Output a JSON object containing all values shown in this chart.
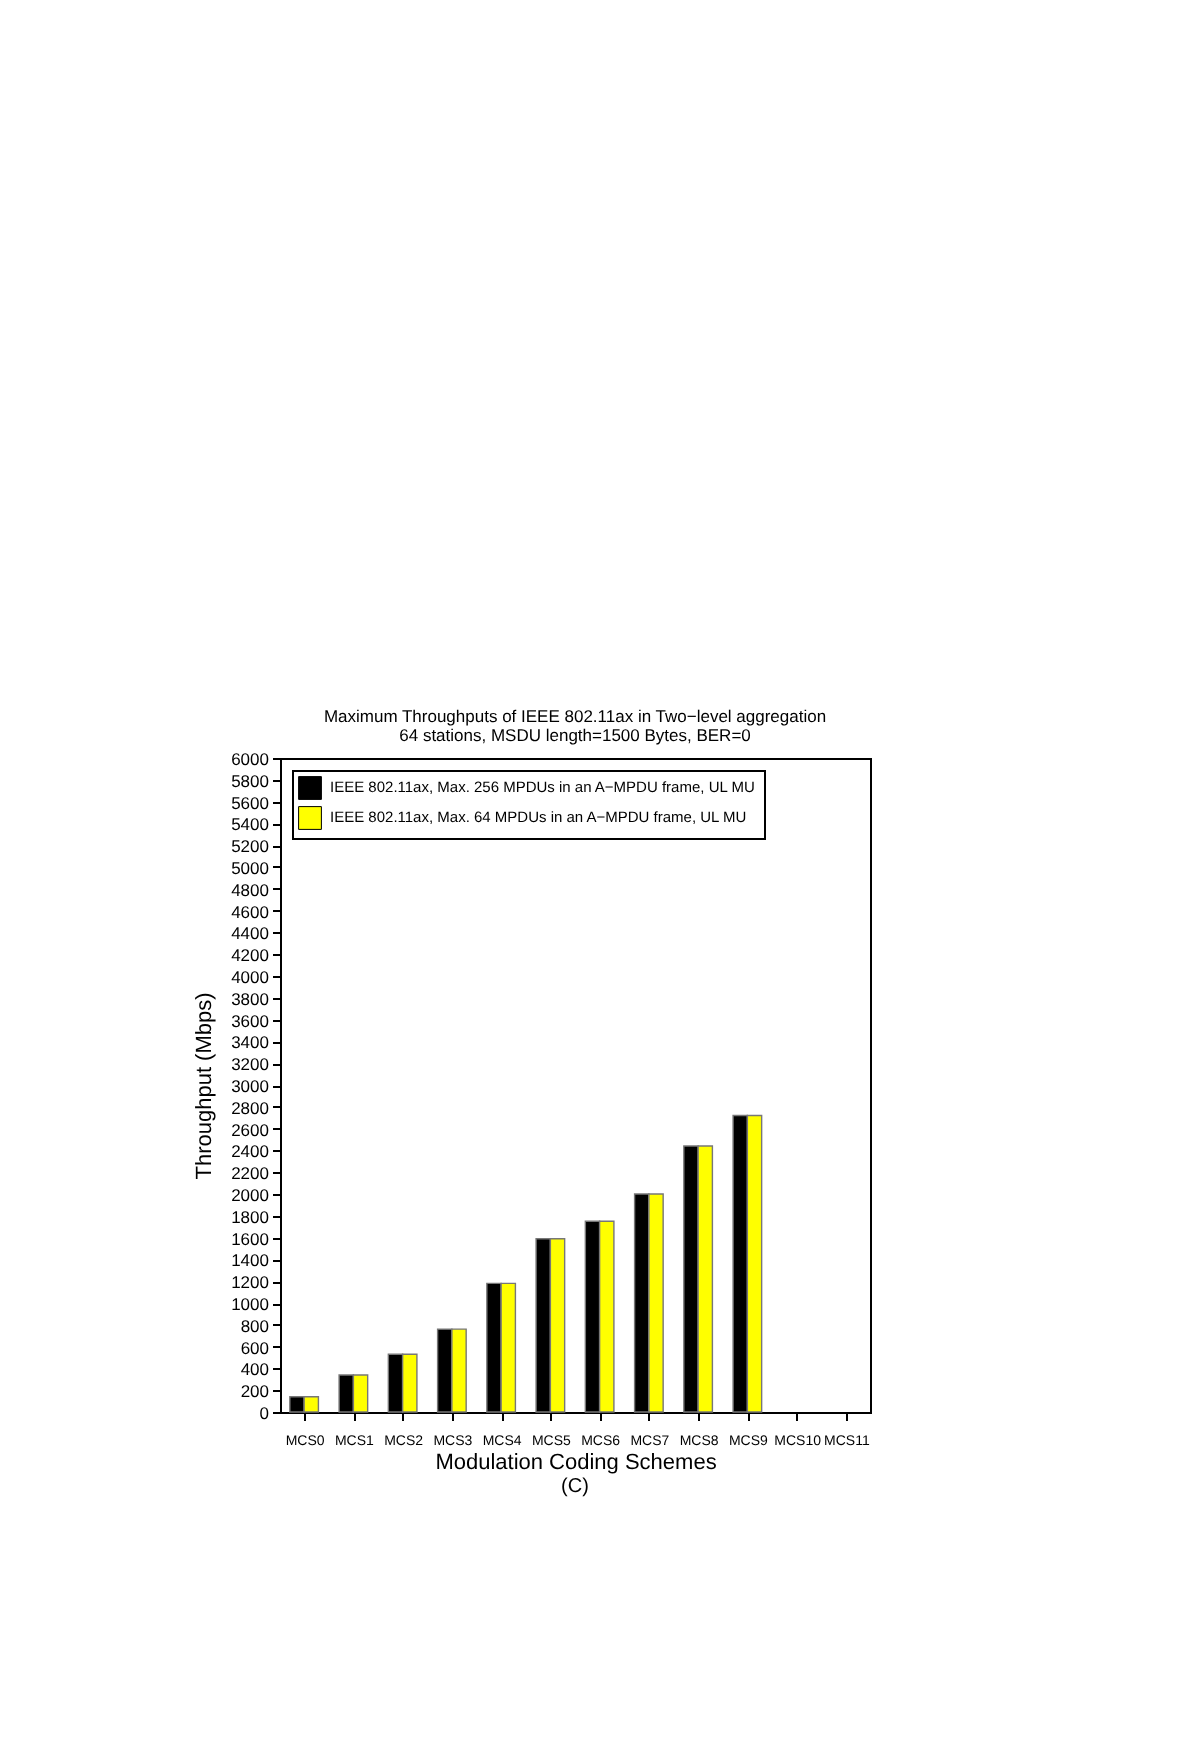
{
  "chart_data": {
    "type": "bar",
    "title": "Maximum Throughputs of IEEE 802.11ax in Two−level aggregation",
    "subtitle": "64 stations, MSDU length=1500 Bytes, BER=0",
    "xlabel": "Modulation Coding Schemes",
    "ylabel": "Throughput (Mbps)",
    "annotations": [
      "(C)"
    ],
    "categories": [
      "MCS0",
      "MCS1",
      "MCS2",
      "MCS3",
      "MCS4",
      "MCS5",
      "MCS6",
      "MCS7",
      "MCS8",
      "MCS9",
      "MCS10",
      "MCS11"
    ],
    "series": [
      {
        "name": "IEEE 802.11ax, Max. 256 MPDUs in an A−MPDU frame, UL MU",
        "color": "#000000",
        "values": [
          140,
          340,
          530,
          760,
          1180,
          1590,
          1750,
          2000,
          2440,
          2720,
          null,
          null
        ]
      },
      {
        "name": "IEEE 802.11ax, Max. 64 MPDUs in an A−MPDU frame, UL MU",
        "color": "#ffff00",
        "values": [
          140,
          340,
          530,
          760,
          1180,
          1590,
          1750,
          2000,
          2440,
          2720,
          null,
          null
        ]
      }
    ],
    "ylim": [
      0,
      6000
    ],
    "yticks": [
      0,
      200,
      400,
      600,
      800,
      1000,
      1200,
      1400,
      1600,
      1800,
      2000,
      2200,
      2400,
      2600,
      2800,
      3000,
      3200,
      3400,
      3600,
      3800,
      4000,
      4200,
      4400,
      4600,
      4800,
      5000,
      5200,
      5400,
      5600,
      5800,
      6000
    ],
    "grid": false,
    "legend": "top left"
  }
}
